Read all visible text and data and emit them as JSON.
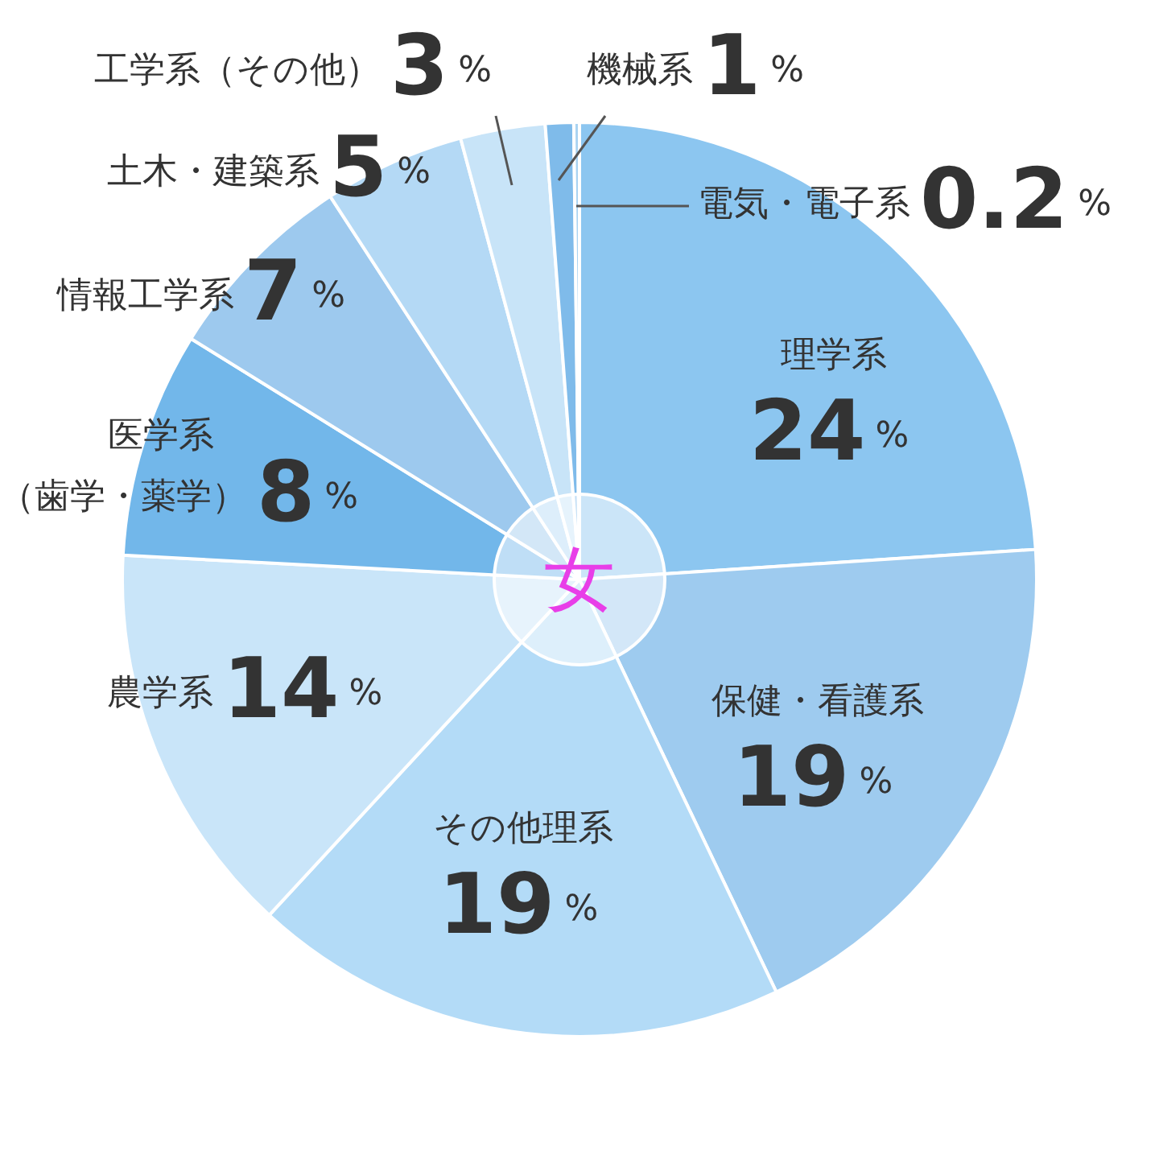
{
  "chart_data": {
    "type": "pie",
    "categories": [
      "理学系",
      "保健・看護系",
      "その他理系",
      "農学系",
      "医学系（歯学・薬学）",
      "情報工学系",
      "土木・建築系",
      "工学系（その他）",
      "機械系",
      "電気・電子系"
    ],
    "values": [
      24,
      19,
      19,
      14,
      8,
      7,
      5,
      3,
      1,
      0.2
    ],
    "colors": [
      "#8cc6f0",
      "#9ecbef",
      "#b3dbf7",
      "#c9e5f9",
      "#72b7ea",
      "#9dc9ee",
      "#b4d9f5",
      "#c8e4f8",
      "#7fbbea",
      "#a9d3f2"
    ],
    "value_labels": [
      "24%",
      "19%",
      "19%",
      "14%",
      "8%",
      "7%",
      "5%",
      "3%",
      "1%",
      "0.2%"
    ],
    "legend": false,
    "annotations": [
      "女"
    ]
  }
}
